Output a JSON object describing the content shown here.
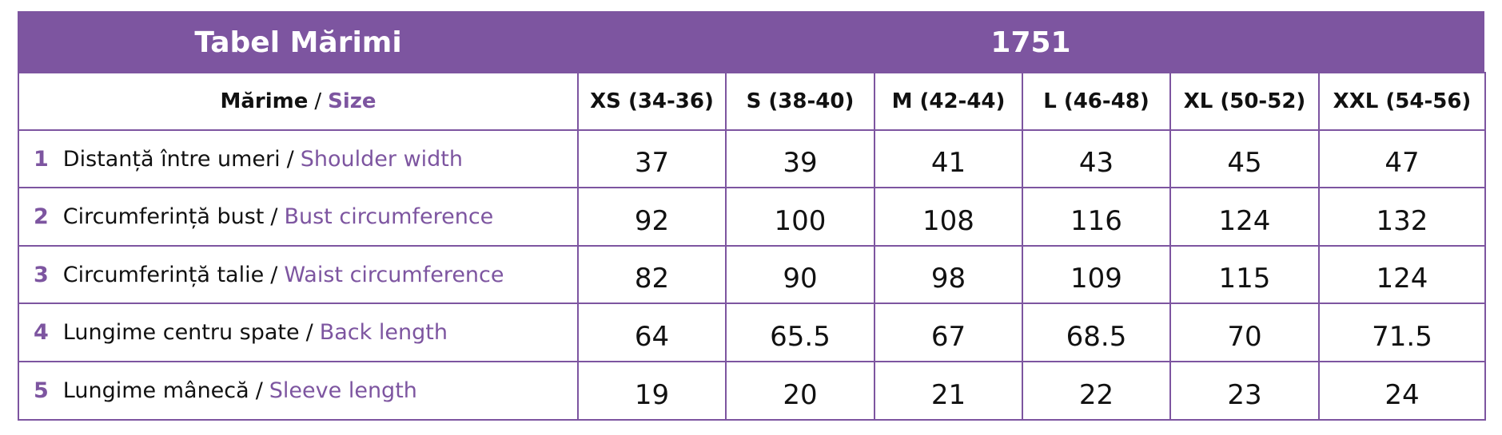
{
  "header": {
    "title": "Tabel Mărimi",
    "code": "1751"
  },
  "table": {
    "separator": "/",
    "head": {
      "label_ro": "Mărime",
      "label_en": "Size",
      "sizes": [
        "XS (34-36)",
        "S (38-40)",
        "M (42-44)",
        "L (46-48)",
        "XL (50-52)",
        "XXL (54-56)"
      ]
    },
    "rows": [
      {
        "number": "1",
        "label_ro": "Distanță între umeri",
        "label_en": "Shoulder width",
        "values": [
          37,
          39,
          41,
          43,
          45,
          47
        ]
      },
      {
        "number": "2",
        "label_ro": "Circumferință bust",
        "label_en": "Bust circumference",
        "values": [
          92,
          100,
          108,
          116,
          124,
          132
        ]
      },
      {
        "number": "3",
        "label_ro": "Circumferință talie",
        "label_en": "Waist circumference",
        "values": [
          82,
          90,
          98,
          109,
          115,
          124
        ]
      },
      {
        "number": "4",
        "label_ro": "Lungime centru spate",
        "label_en": "Back length",
        "values": [
          64,
          65.5,
          67,
          68.5,
          70,
          71.5
        ]
      },
      {
        "number": "5",
        "label_ro": "Lungime mânecă",
        "label_en": "Sleeve length",
        "values": [
          19,
          20,
          21,
          22,
          23,
          24
        ]
      }
    ]
  }
}
